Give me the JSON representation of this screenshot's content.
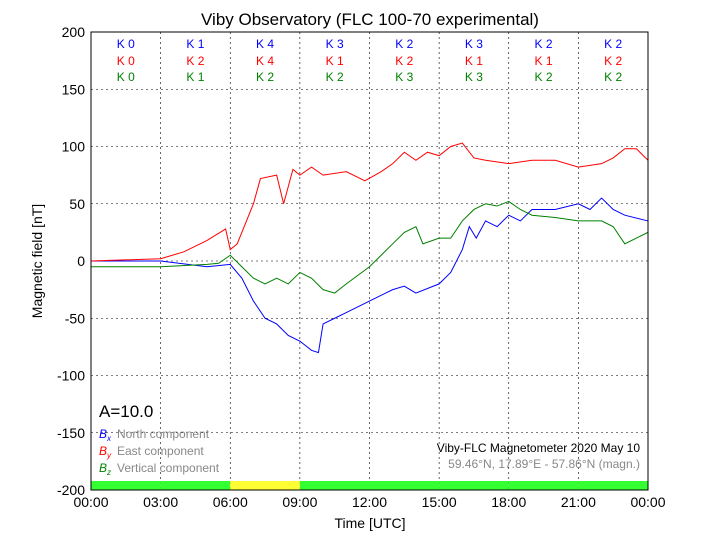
{
  "chart_data": {
    "type": "line",
    "title": "Viby Observatory (FLC 100-70 experimental)",
    "xlabel": "Time [UTC]",
    "ylabel": "Magnetic field [nT]",
    "xlim": [
      0,
      24
    ],
    "ylim": [
      -200,
      200
    ],
    "xticks": [
      "00:00",
      "03:00",
      "06:00",
      "09:00",
      "12:00",
      "15:00",
      "18:00",
      "21:00",
      "00:00"
    ],
    "yticks": [
      200,
      150,
      100,
      50,
      0,
      -50,
      -100,
      -150,
      -200
    ],
    "grid": true,
    "k_indices": {
      "x": [
        "K 0",
        "K 1",
        "K 4",
        "K 3",
        "K 2",
        "K 3",
        "K 2",
        "K 2"
      ],
      "y": [
        "K 0",
        "K 2",
        "K 4",
        "K 1",
        "K 2",
        "K 1",
        "K 1",
        "K 2"
      ],
      "z": [
        "K 0",
        "K 1",
        "K 2",
        "K 2",
        "K 3",
        "K 3",
        "K 2",
        "K 2"
      ]
    },
    "a_index": "A=10.0",
    "legend": {
      "placement": "bottom-left",
      "entries": [
        {
          "symbol": "B",
          "sub": "x",
          "label": "North component",
          "color": "#0000ff"
        },
        {
          "symbol": "B",
          "sub": "y",
          "label": "East component",
          "color": "#ff0000"
        },
        {
          "symbol": "B",
          "sub": "z",
          "label": "Vertical component",
          "color": "#008000"
        }
      ]
    },
    "annotation": "Viby-FLC Magnetometer 2020 May 10",
    "location": "59.46°N, 17.89°E - 57.86°N (magn.)",
    "activity_bar": [
      "#33ff33",
      "#33ff33",
      "#ffff33",
      "#33ff33",
      "#33ff33",
      "#33ff33",
      "#33ff33",
      "#33ff33"
    ],
    "series": [
      {
        "name": "Bx",
        "color": "#0000ff",
        "x": [
          0,
          3,
          5,
          6,
          6.5,
          7,
          7.5,
          8,
          8.5,
          9,
          9.5,
          9.8,
          10,
          10.5,
          11,
          12,
          12.5,
          13,
          13.5,
          14,
          15,
          15.5,
          16,
          16.3,
          16.6,
          17,
          17.5,
          18,
          18.5,
          19,
          20,
          21,
          21.5,
          22,
          22.5,
          23,
          24
        ],
        "y": [
          0,
          0,
          -5,
          -3,
          -15,
          -35,
          -50,
          -55,
          -65,
          -70,
          -78,
          -80,
          -55,
          -50,
          -45,
          -35,
          -30,
          -25,
          -22,
          -28,
          -20,
          -10,
          10,
          30,
          20,
          35,
          30,
          40,
          35,
          45,
          45,
          50,
          45,
          55,
          45,
          40,
          35
        ]
      },
      {
        "name": "By",
        "color": "#ff0000",
        "x": [
          0,
          3,
          4,
          5,
          5.8,
          6,
          6.3,
          7,
          7.3,
          8,
          8.3,
          8.7,
          9,
          9.5,
          10,
          11,
          11.8,
          12.5,
          13,
          13.5,
          14,
          14.5,
          15,
          15.5,
          16,
          16.5,
          17,
          18,
          19,
          20,
          21,
          22,
          22.5,
          23,
          23.5,
          24
        ],
        "y": [
          0,
          2,
          8,
          18,
          28,
          10,
          15,
          50,
          72,
          75,
          50,
          80,
          75,
          82,
          75,
          78,
          70,
          78,
          85,
          95,
          88,
          95,
          92,
          100,
          103,
          90,
          88,
          85,
          88,
          88,
          82,
          85,
          90,
          98,
          98,
          88
        ]
      },
      {
        "name": "Bz",
        "color": "#008000",
        "x": [
          0,
          3,
          5,
          5.5,
          6,
          6.5,
          7,
          7.5,
          8,
          8.5,
          9,
          9.5,
          10,
          10.5,
          11,
          12,
          13,
          13.5,
          14,
          14.3,
          15,
          15.5,
          16,
          16.5,
          17,
          17.5,
          18,
          18.5,
          19,
          20,
          21,
          22,
          22.5,
          23,
          23.5,
          24
        ],
        "y": [
          -5,
          -5,
          -3,
          -2,
          5,
          -5,
          -15,
          -20,
          -15,
          -20,
          -10,
          -15,
          -25,
          -28,
          -20,
          -5,
          15,
          25,
          30,
          15,
          20,
          20,
          35,
          45,
          50,
          48,
          52,
          45,
          40,
          38,
          35,
          35,
          30,
          15,
          20,
          25
        ]
      }
    ]
  }
}
